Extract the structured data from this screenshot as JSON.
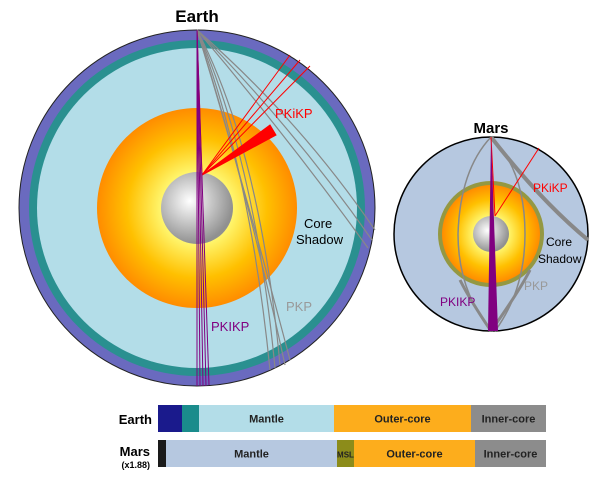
{
  "earth": {
    "title": "Earth",
    "pkikp_red": "PKiKP",
    "core_shadow": [
      "Core",
      "Shadow"
    ],
    "pkp": "PKP",
    "pkikp": "PKIKP"
  },
  "mars": {
    "title": "Mars",
    "pkikp_red": "PKiKP",
    "core_shadow": [
      "Core",
      "Shadow"
    ],
    "pkp": "PKP",
    "pkikp": "PKIKP"
  },
  "bars": {
    "earth": {
      "label": "Earth",
      "segments": [
        {
          "label": "",
          "color": "#1a1a8c"
        },
        {
          "label": "",
          "color": "#1a8c8c"
        },
        {
          "label": "Mantle",
          "color": "#b3dde8"
        },
        {
          "label": "Outer-core",
          "color": "#fdad1c"
        },
        {
          "label": "Inner-core",
          "color": "#8c8c8c"
        }
      ]
    },
    "mars": {
      "label": "Mars",
      "scale": "(x1.88)",
      "segments": [
        {
          "label": "",
          "color": "#1a1a1a"
        },
        {
          "label": "Mantle",
          "color": "#b6c8e0"
        },
        {
          "label": "MSL",
          "color": "#8c8c1a"
        },
        {
          "label": "Outer-core",
          "color": "#fdad1c"
        },
        {
          "label": "Inner-core",
          "color": "#8c8c8c"
        }
      ]
    }
  },
  "colors": {
    "pkikp_red": "#ff0000",
    "pkikp_purple": "#800080",
    "pkp": "#888888"
  }
}
